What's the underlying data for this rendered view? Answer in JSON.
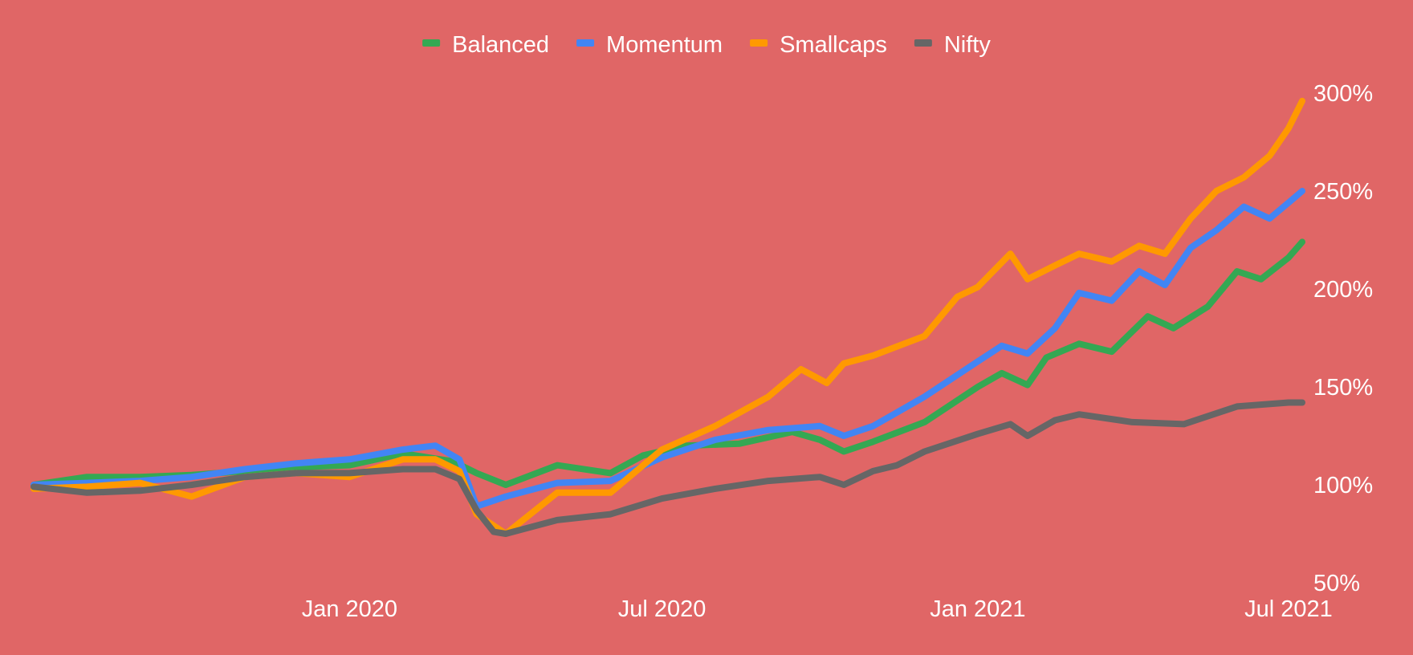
{
  "chart_data": {
    "type": "line",
    "background": "#e06666",
    "legend_position": "top-center",
    "grid": false,
    "x_axis": {
      "type": "date",
      "range": [
        "2019-07-01",
        "2021-07-09"
      ],
      "ticks": [
        {
          "date": "2020-01-01",
          "label": "Jan 2020"
        },
        {
          "date": "2020-07-01",
          "label": "Jul 2020"
        },
        {
          "date": "2021-01-01",
          "label": "Jan 2021"
        },
        {
          "date": "2021-07-01",
          "label": "Jul 2021"
        }
      ]
    },
    "y_axis": {
      "position": "right",
      "format": "percent",
      "range": [
        50,
        310
      ],
      "ticks": [
        {
          "value": 300,
          "label": "300%"
        },
        {
          "value": 250,
          "label": "250%"
        },
        {
          "value": 200,
          "label": "200%"
        },
        {
          "value": 150,
          "label": "150%"
        },
        {
          "value": 100,
          "label": "100%"
        },
        {
          "value": 50,
          "label": "50%"
        }
      ]
    },
    "series": [
      {
        "name": "Balanced",
        "color": "#34a853",
        "points": [
          [
            "2019-07-01",
            100
          ],
          [
            "2019-08-01",
            104
          ],
          [
            "2019-09-01",
            104
          ],
          [
            "2019-10-01",
            105
          ],
          [
            "2019-11-01",
            107
          ],
          [
            "2019-12-01",
            109
          ],
          [
            "2020-01-01",
            110
          ],
          [
            "2020-02-01",
            116
          ],
          [
            "2020-03-01",
            112
          ],
          [
            "2020-03-15",
            106
          ],
          [
            "2020-04-01",
            100
          ],
          [
            "2020-05-01",
            110
          ],
          [
            "2020-06-01",
            106
          ],
          [
            "2020-06-20",
            115
          ],
          [
            "2020-07-15",
            120
          ],
          [
            "2020-08-15",
            121
          ],
          [
            "2020-09-15",
            127
          ],
          [
            "2020-10-01",
            123
          ],
          [
            "2020-10-15",
            117
          ],
          [
            "2020-11-01",
            122
          ],
          [
            "2020-12-01",
            132
          ],
          [
            "2021-01-01",
            150
          ],
          [
            "2021-01-15",
            157
          ],
          [
            "2021-01-30",
            151
          ],
          [
            "2021-02-10",
            165
          ],
          [
            "2021-03-01",
            172
          ],
          [
            "2021-03-20",
            168
          ],
          [
            "2021-04-10",
            186
          ],
          [
            "2021-04-25",
            180
          ],
          [
            "2021-05-15",
            191
          ],
          [
            "2021-06-01",
            209
          ],
          [
            "2021-06-15",
            205
          ],
          [
            "2021-07-01",
            216
          ],
          [
            "2021-07-09",
            224
          ]
        ]
      },
      {
        "name": "Momentum",
        "color": "#4285f4",
        "points": [
          [
            "2019-07-01",
            100
          ],
          [
            "2019-08-01",
            101
          ],
          [
            "2019-09-01",
            102
          ],
          [
            "2019-10-01",
            104
          ],
          [
            "2019-11-01",
            108
          ],
          [
            "2019-12-01",
            111
          ],
          [
            "2020-01-01",
            113
          ],
          [
            "2020-02-01",
            118
          ],
          [
            "2020-02-20",
            120
          ],
          [
            "2020-03-05",
            113
          ],
          [
            "2020-03-15",
            89
          ],
          [
            "2020-04-01",
            94
          ],
          [
            "2020-05-01",
            101
          ],
          [
            "2020-06-01",
            102
          ],
          [
            "2020-07-01",
            114
          ],
          [
            "2020-08-01",
            123
          ],
          [
            "2020-09-01",
            128
          ],
          [
            "2020-10-01",
            130
          ],
          [
            "2020-10-15",
            125
          ],
          [
            "2020-11-01",
            130
          ],
          [
            "2020-12-01",
            145
          ],
          [
            "2021-01-01",
            163
          ],
          [
            "2021-01-15",
            171
          ],
          [
            "2021-01-30",
            167
          ],
          [
            "2021-02-15",
            180
          ],
          [
            "2021-03-01",
            198
          ],
          [
            "2021-03-20",
            194
          ],
          [
            "2021-04-05",
            209
          ],
          [
            "2021-04-20",
            202
          ],
          [
            "2021-05-05",
            221
          ],
          [
            "2021-05-20",
            230
          ],
          [
            "2021-06-05",
            242
          ],
          [
            "2021-06-20",
            236
          ],
          [
            "2021-07-01",
            244
          ],
          [
            "2021-07-09",
            250
          ]
        ]
      },
      {
        "name": "Smallcaps",
        "color": "#ff9900",
        "points": [
          [
            "2019-07-01",
            98
          ],
          [
            "2019-08-01",
            99
          ],
          [
            "2019-09-01",
            101
          ],
          [
            "2019-10-01",
            94
          ],
          [
            "2019-11-01",
            104
          ],
          [
            "2019-12-01",
            106
          ],
          [
            "2020-01-01",
            104
          ],
          [
            "2020-02-01",
            113
          ],
          [
            "2020-02-20",
            113
          ],
          [
            "2020-03-05",
            107
          ],
          [
            "2020-03-15",
            85
          ],
          [
            "2020-04-01",
            75
          ],
          [
            "2020-05-01",
            96
          ],
          [
            "2020-06-01",
            96
          ],
          [
            "2020-07-01",
            118
          ],
          [
            "2020-08-01",
            130
          ],
          [
            "2020-09-01",
            145
          ],
          [
            "2020-09-20",
            159
          ],
          [
            "2020-10-05",
            152
          ],
          [
            "2020-10-15",
            162
          ],
          [
            "2020-11-01",
            166
          ],
          [
            "2020-12-01",
            176
          ],
          [
            "2020-12-20",
            196
          ],
          [
            "2021-01-01",
            201
          ],
          [
            "2021-01-20",
            218
          ],
          [
            "2021-01-30",
            205
          ],
          [
            "2021-02-15",
            212
          ],
          [
            "2021-03-01",
            218
          ],
          [
            "2021-03-20",
            214
          ],
          [
            "2021-04-05",
            222
          ],
          [
            "2021-04-20",
            218
          ],
          [
            "2021-05-05",
            236
          ],
          [
            "2021-05-20",
            250
          ],
          [
            "2021-06-05",
            257
          ],
          [
            "2021-06-20",
            268
          ],
          [
            "2021-07-01",
            282
          ],
          [
            "2021-07-09",
            296
          ]
        ]
      },
      {
        "name": "Nifty",
        "color": "#666666",
        "points": [
          [
            "2019-07-01",
            99
          ],
          [
            "2019-08-01",
            96
          ],
          [
            "2019-09-01",
            97
          ],
          [
            "2019-10-01",
            100
          ],
          [
            "2019-11-01",
            104
          ],
          [
            "2019-12-01",
            106
          ],
          [
            "2020-01-01",
            106
          ],
          [
            "2020-02-01",
            108
          ],
          [
            "2020-02-20",
            108
          ],
          [
            "2020-03-05",
            103
          ],
          [
            "2020-03-15",
            87
          ],
          [
            "2020-03-25",
            76
          ],
          [
            "2020-04-01",
            75
          ],
          [
            "2020-05-01",
            82
          ],
          [
            "2020-06-01",
            85
          ],
          [
            "2020-07-01",
            93
          ],
          [
            "2020-08-01",
            98
          ],
          [
            "2020-09-01",
            102
          ],
          [
            "2020-10-01",
            104
          ],
          [
            "2020-10-15",
            100
          ],
          [
            "2020-11-01",
            107
          ],
          [
            "2020-11-15",
            110
          ],
          [
            "2020-12-01",
            117
          ],
          [
            "2021-01-01",
            126
          ],
          [
            "2021-01-20",
            131
          ],
          [
            "2021-01-30",
            125
          ],
          [
            "2021-02-15",
            133
          ],
          [
            "2021-03-01",
            136
          ],
          [
            "2021-04-01",
            132
          ],
          [
            "2021-05-01",
            131
          ],
          [
            "2021-06-01",
            140
          ],
          [
            "2021-07-01",
            142
          ],
          [
            "2021-07-09",
            142
          ]
        ]
      }
    ]
  }
}
